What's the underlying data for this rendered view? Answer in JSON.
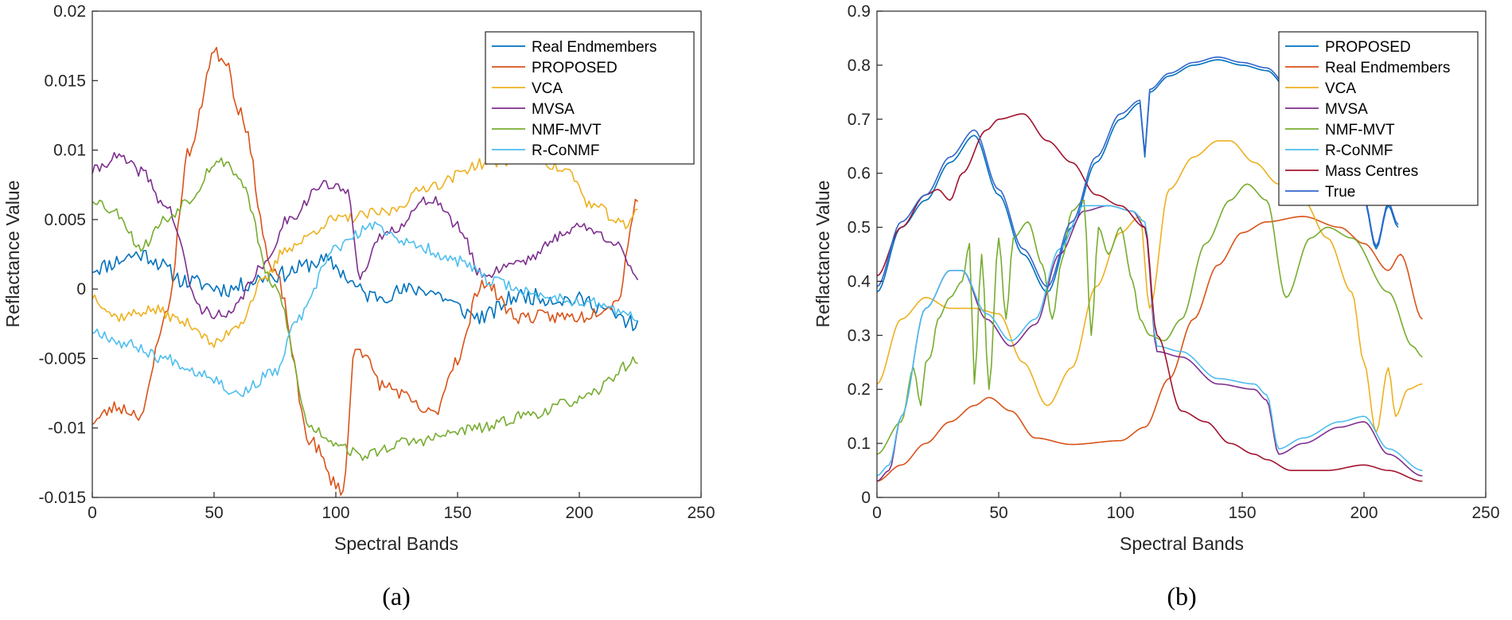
{
  "colors": {
    "blue": "#0072BD",
    "orange": "#D95319",
    "yellow": "#EDB120",
    "purple": "#7E2F8E",
    "green": "#77AC30",
    "cyan": "#4DBEEE",
    "darkred": "#A2142F",
    "trueblue": "#3366CC"
  },
  "chart_data": [
    {
      "type": "line",
      "caption": "(a)",
      "xlabel": "Spectral Bands",
      "ylabel": "Reflactance Value",
      "xlim": [
        0,
        250
      ],
      "ylim": [
        -0.015,
        0.02
      ],
      "xticks": [
        "0",
        "50",
        "100",
        "150",
        "200",
        "250"
      ],
      "yticks": [
        "0.02",
        "0.015",
        "0.01",
        "0.005",
        "0",
        "-0.005",
        "-0.01",
        "-0.015"
      ],
      "ytick_values": [
        0.02,
        0.015,
        0.01,
        0.005,
        0,
        -0.005,
        -0.01,
        -0.015
      ],
      "legend_position": "top-right",
      "series": [
        {
          "name": "Real Endmembers",
          "color": "blue",
          "noise": 0.0006,
          "seed": 11,
          "x": [
            0,
            20,
            40,
            55,
            75,
            95,
            115,
            135,
            160,
            175,
            200,
            224
          ],
          "y": [
            0.0015,
            0.0025,
            0.0005,
            0.0,
            0.001,
            0.002,
            -0.0005,
            0.0,
            -0.002,
            -0.0005,
            -0.0008,
            -0.0025
          ]
        },
        {
          "name": "PROPOSED",
          "color": "orange",
          "noise": 0.0005,
          "seed": 23,
          "x": [
            0,
            10,
            20,
            30,
            40,
            50,
            55,
            60,
            75,
            90,
            100,
            103,
            108,
            120,
            140,
            150,
            160,
            175,
            200,
            215,
            224
          ],
          "y": [
            -0.0095,
            -0.0085,
            -0.009,
            -0.002,
            0.01,
            0.017,
            0.0165,
            0.013,
            0.001,
            -0.011,
            -0.014,
            -0.0145,
            -0.004,
            -0.007,
            -0.009,
            -0.005,
            0.0005,
            -0.002,
            -0.002,
            -0.001,
            0.0065
          ]
        },
        {
          "name": "VCA",
          "color": "yellow",
          "noise": 0.0004,
          "seed": 37,
          "x": [
            0,
            10,
            25,
            40,
            50,
            60,
            70,
            80,
            100,
            120,
            140,
            160,
            180,
            195,
            205,
            220,
            224
          ],
          "y": [
            -0.0005,
            -0.002,
            -0.0015,
            -0.0025,
            -0.004,
            -0.0025,
            0.0005,
            0.003,
            0.005,
            0.0055,
            0.0075,
            0.009,
            0.0095,
            0.0085,
            0.006,
            0.0045,
            0.006
          ]
        },
        {
          "name": "MVSA",
          "color": "purple",
          "noise": 0.0004,
          "seed": 41,
          "x": [
            0,
            10,
            20,
            30,
            45,
            55,
            70,
            80,
            95,
            105,
            110,
            120,
            140,
            150,
            160,
            175,
            200,
            215,
            224
          ],
          "y": [
            0.0085,
            0.0095,
            0.0085,
            0.006,
            -0.0015,
            -0.002,
            0.0015,
            0.005,
            0.0075,
            0.007,
            0.001,
            0.004,
            0.0065,
            0.0045,
            0.001,
            0.002,
            0.0045,
            0.0035,
            0.0005
          ]
        },
        {
          "name": "NMF-MVT",
          "color": "green",
          "noise": 0.0004,
          "seed": 53,
          "x": [
            0,
            10,
            20,
            30,
            40,
            50,
            55,
            60,
            75,
            90,
            100,
            110,
            130,
            160,
            180,
            200,
            224
          ],
          "y": [
            0.0065,
            0.0055,
            0.003,
            0.005,
            0.0065,
            0.009,
            0.0092,
            0.008,
            0.0,
            -0.01,
            -0.011,
            -0.012,
            -0.011,
            -0.01,
            -0.009,
            -0.008,
            -0.0052
          ]
        },
        {
          "name": "R-CoNMF",
          "color": "cyan",
          "noise": 0.0004,
          "seed": 67,
          "x": [
            0,
            15,
            30,
            45,
            60,
            75,
            85,
            100,
            115,
            135,
            150,
            165,
            185,
            205,
            224
          ],
          "y": [
            -0.003,
            -0.004,
            -0.005,
            -0.006,
            -0.0075,
            -0.006,
            -0.002,
            0.003,
            0.0045,
            0.003,
            0.002,
            0.0005,
            -0.0005,
            -0.001,
            -0.002
          ]
        }
      ]
    },
    {
      "type": "line",
      "caption": "(b)",
      "xlabel": "Spectral Bands",
      "ylabel": "Reflactance Value",
      "xlim": [
        0,
        250
      ],
      "ylim": [
        0,
        0.9
      ],
      "xticks": [
        "0",
        "50",
        "100",
        "150",
        "200",
        "250"
      ],
      "yticks": [
        "0.9",
        "0.8",
        "0.7",
        "0.6",
        "0.5",
        "0.4",
        "0.3",
        "0.2",
        "0.1",
        "0"
      ],
      "ytick_values": [
        0.9,
        0.8,
        0.7,
        0.6,
        0.5,
        0.4,
        0.3,
        0.2,
        0.1,
        0
      ],
      "legend_position": "top-right",
      "series": [
        {
          "name": "PROPOSED",
          "color": "blue",
          "noise": 0,
          "seed": 1,
          "x": [
            0,
            10,
            20,
            30,
            40,
            50,
            60,
            70,
            80,
            90,
            100,
            108,
            110,
            112,
            120,
            130,
            140,
            150,
            160,
            170,
            180,
            190,
            200,
            205,
            210,
            214
          ],
          "y": [
            0.38,
            0.5,
            0.55,
            0.62,
            0.67,
            0.56,
            0.45,
            0.38,
            0.5,
            0.62,
            0.7,
            0.73,
            0.63,
            0.75,
            0.78,
            0.8,
            0.81,
            0.8,
            0.79,
            0.75,
            0.7,
            0.62,
            0.55,
            0.46,
            0.54,
            0.5
          ]
        },
        {
          "name": "Real Endmembers",
          "color": "orange",
          "noise": 0,
          "seed": 2,
          "x": [
            0,
            10,
            20,
            30,
            40,
            46,
            55,
            65,
            80,
            100,
            110,
            120,
            130,
            140,
            150,
            160,
            175,
            190,
            200,
            210,
            215,
            224
          ],
          "y": [
            0.03,
            0.06,
            0.1,
            0.14,
            0.17,
            0.185,
            0.16,
            0.11,
            0.098,
            0.105,
            0.13,
            0.22,
            0.33,
            0.43,
            0.49,
            0.51,
            0.52,
            0.5,
            0.47,
            0.42,
            0.45,
            0.33
          ]
        },
        {
          "name": "VCA",
          "color": "yellow",
          "noise": 0,
          "seed": 3,
          "x": [
            0,
            10,
            20,
            30,
            40,
            50,
            60,
            70,
            80,
            90,
            100,
            108,
            112,
            120,
            130,
            140,
            145,
            155,
            165,
            175,
            185,
            195,
            200,
            205,
            210,
            213,
            218,
            224
          ],
          "y": [
            0.21,
            0.33,
            0.37,
            0.35,
            0.35,
            0.34,
            0.25,
            0.17,
            0.24,
            0.39,
            0.49,
            0.52,
            0.35,
            0.57,
            0.63,
            0.66,
            0.66,
            0.62,
            0.58,
            0.55,
            0.48,
            0.38,
            0.25,
            0.12,
            0.24,
            0.15,
            0.2,
            0.21
          ]
        },
        {
          "name": "MVSA",
          "color": "purple",
          "noise": 0,
          "seed": 4,
          "x": [
            0,
            5,
            10,
            20,
            30,
            35,
            45,
            55,
            65,
            75,
            85,
            95,
            105,
            110,
            115,
            125,
            140,
            155,
            160,
            165,
            175,
            190,
            200,
            210,
            224
          ],
          "y": [
            0.03,
            0.05,
            0.15,
            0.35,
            0.42,
            0.42,
            0.33,
            0.28,
            0.32,
            0.45,
            0.53,
            0.54,
            0.53,
            0.5,
            0.27,
            0.26,
            0.21,
            0.2,
            0.18,
            0.08,
            0.1,
            0.13,
            0.14,
            0.08,
            0.04
          ]
        },
        {
          "name": "NMF-MVT",
          "color": "green",
          "noise": 0,
          "seed": 5,
          "x": [
            0,
            10,
            15,
            18,
            20,
            22,
            25,
            30,
            35,
            38,
            40,
            43,
            46,
            50,
            53,
            56,
            62,
            68,
            72,
            76,
            80,
            85,
            88,
            91,
            95,
            100,
            105,
            108,
            112,
            118,
            125,
            135,
            145,
            152,
            160,
            168,
            178,
            185,
            195,
            210,
            220,
            224
          ],
          "y": [
            0.08,
            0.14,
            0.24,
            0.17,
            0.25,
            0.26,
            0.33,
            0.37,
            0.4,
            0.47,
            0.21,
            0.45,
            0.2,
            0.48,
            0.33,
            0.48,
            0.51,
            0.43,
            0.33,
            0.44,
            0.53,
            0.55,
            0.3,
            0.5,
            0.45,
            0.5,
            0.4,
            0.33,
            0.3,
            0.29,
            0.33,
            0.47,
            0.55,
            0.58,
            0.55,
            0.37,
            0.48,
            0.5,
            0.48,
            0.38,
            0.28,
            0.26
          ]
        },
        {
          "name": "R-CoNMF",
          "color": "cyan",
          "noise": 0,
          "seed": 6,
          "x": [
            0,
            5,
            10,
            20,
            30,
            35,
            45,
            55,
            65,
            75,
            85,
            95,
            105,
            110,
            115,
            125,
            140,
            155,
            160,
            165,
            175,
            190,
            200,
            210,
            224
          ],
          "y": [
            0.04,
            0.06,
            0.15,
            0.35,
            0.42,
            0.42,
            0.34,
            0.29,
            0.33,
            0.46,
            0.54,
            0.54,
            0.53,
            0.51,
            0.28,
            0.27,
            0.22,
            0.21,
            0.19,
            0.09,
            0.11,
            0.14,
            0.15,
            0.09,
            0.05
          ]
        },
        {
          "name": "Mass Centres",
          "color": "darkred",
          "noise": 0,
          "seed": 7,
          "x": [
            0,
            10,
            20,
            25,
            30,
            35,
            45,
            50,
            60,
            70,
            80,
            90,
            100,
            110,
            115,
            125,
            135,
            145,
            155,
            160,
            170,
            185,
            200,
            210,
            224
          ],
          "y": [
            0.41,
            0.5,
            0.56,
            0.57,
            0.55,
            0.6,
            0.68,
            0.7,
            0.71,
            0.66,
            0.62,
            0.56,
            0.54,
            0.5,
            0.3,
            0.16,
            0.14,
            0.1,
            0.08,
            0.07,
            0.05,
            0.05,
            0.06,
            0.05,
            0.03
          ]
        },
        {
          "name": "True",
          "color": "trueblue",
          "noise": 0,
          "seed": 8,
          "x": [
            0,
            10,
            20,
            30,
            40,
            50,
            60,
            70,
            80,
            90,
            100,
            108,
            110,
            112,
            120,
            130,
            140,
            150,
            160,
            170,
            180,
            190,
            200,
            205,
            210,
            214
          ],
          "y": [
            0.39,
            0.51,
            0.56,
            0.63,
            0.68,
            0.57,
            0.46,
            0.39,
            0.51,
            0.63,
            0.71,
            0.735,
            0.635,
            0.755,
            0.785,
            0.805,
            0.815,
            0.805,
            0.795,
            0.755,
            0.705,
            0.625,
            0.555,
            0.465,
            0.545,
            0.505
          ]
        }
      ]
    }
  ]
}
